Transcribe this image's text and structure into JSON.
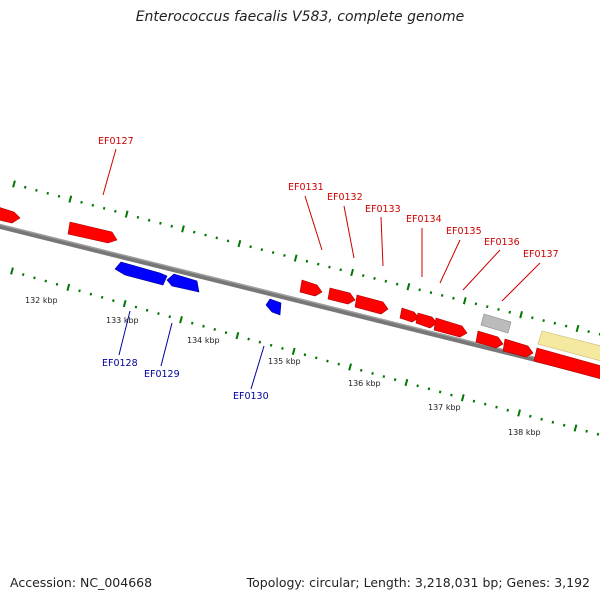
{
  "title": "Enterococcus faecalis V583, complete genome",
  "footer": {
    "accession": "Accession: NC_004668",
    "summary": "Topology: circular; Length: 3,218,031 bp; Genes: 3,192"
  },
  "colors": {
    "forward_gene": "#ff0000",
    "reverse_gene": "#0000ff",
    "forward_label": "#cc0000",
    "reverse_label": "#000099",
    "tick": "#007700",
    "backbone": "#777777",
    "other_feature": "#bbbbbb",
    "highlight_feature": "#f5e9a0"
  },
  "ticks_kbp": [
    "132 kbp",
    "133 kbp",
    "134 kbp",
    "135 kbp",
    "136 kbp",
    "137 kbp",
    "138 kbp"
  ],
  "forward_gene_labels": [
    "EF0127",
    "EF0131",
    "EF0132",
    "EF0133",
    "EF0134",
    "EF0135",
    "EF0136",
    "EF0137"
  ],
  "reverse_gene_labels": [
    "EF0128",
    "EF0129",
    "EF0130"
  ]
}
